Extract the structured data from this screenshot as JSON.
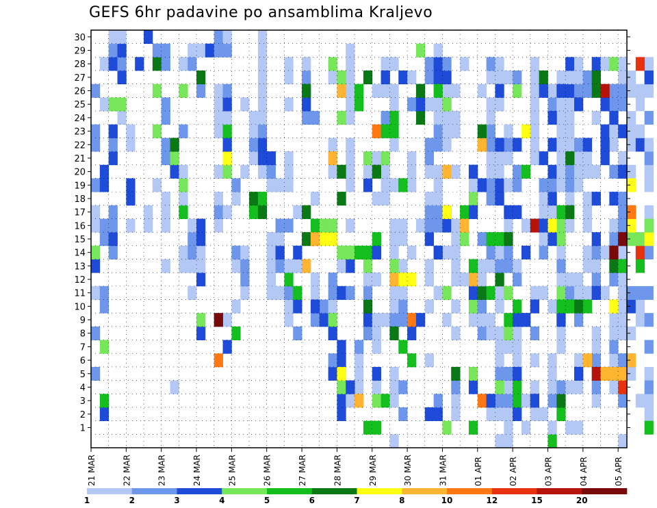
{
  "title": "GEFS 6hr padavine po ansamblima Kraljevo",
  "chart_data": {
    "type": "heatmap",
    "title": "GEFS 6hr padavine po ansamblima Kraljevo",
    "xlabel": "",
    "ylabel": "",
    "x_tick_labels": [
      "21 MAR",
      "22 MAR",
      "23 MAR",
      "24 MAR",
      "25 MAR",
      "26 MAR",
      "27 MAR",
      "28 MAR",
      "29 MAR",
      "30 MAR",
      "31 MAR",
      "01 APR",
      "02 APR",
      "03 APR",
      "04 APR",
      "05 APR"
    ],
    "y_tick_labels": [
      "1",
      "2",
      "3",
      "4",
      "5",
      "6",
      "7",
      "8",
      "9",
      "10",
      "11",
      "12",
      "13",
      "14",
      "15",
      "16",
      "17",
      "18",
      "19",
      "20",
      "21",
      "22",
      "23",
      "24",
      "25",
      "26",
      "27",
      "28",
      "29",
      "30"
    ],
    "steps_per_day": 4,
    "members": 31,
    "grid": true,
    "colorbar": {
      "levels": [
        "1",
        "2",
        "3",
        "4",
        "5",
        "6",
        "7",
        "8",
        "10",
        "12",
        "15",
        "20"
      ],
      "colors": [
        "#b4c8f5",
        "#6e96eb",
        "#1e4bd7",
        "#78e65a",
        "#14be1e",
        "#0a7814",
        "#ffff14",
        "#ffb432",
        "#ff7814",
        "#e6320f",
        "#b4140a",
        "#780a0a"
      ]
    },
    "cells": [
      [
        0,
        "5,1",
        "8,1",
        "11,0",
        "13,2",
        "14,3",
        "16,0",
        "17,0",
        "19,1",
        "22,1",
        "23,1",
        "26,1"
      ],
      [
        1,
        "2,2",
        "3,4",
        "10,1",
        "11,1",
        "15,1",
        "16,1",
        "19,2",
        "20,2",
        "25,0",
        "28,0"
      ],
      [
        2,
        "14,1",
        "15,2",
        "16,1",
        "17,1",
        "21,2",
        "22,1",
        "23,2",
        "25,3",
        "28,2",
        "29,1",
        "30,0"
      ],
      [
        3,
        "24,0",
        "25,3",
        "27,2",
        "28,1",
        "29,2",
        "30,0"
      ],
      [
        4,
        "16,0",
        "18,2",
        "19,2",
        "22,0",
        "23,0"
      ],
      [
        5,
        "28,2"
      ],
      [
        6,
        "16,0",
        "17,0",
        "30,2"
      ],
      [
        7,
        "19,0",
        "23,3",
        "26,3",
        "28,5",
        "29,1"
      ],
      [
        8,
        "13,0",
        "16,0",
        "17,0",
        "18,0",
        "21,1",
        "22,1",
        "24,1",
        "25,1",
        "28,1",
        "29,1"
      ],
      [
        9,
        "4,0",
        "20,2",
        "21,3",
        "22,5"
      ],
      [
        10,
        "13,0",
        "14,0",
        "17,4",
        "18,0",
        "19,3",
        "20,0",
        "23,1",
        "26,3",
        "28,0"
      ],
      [
        11,
        "11,0",
        "13,0",
        "14,1",
        "15,1",
        "16,0",
        "28,1",
        "29,0"
      ],
      [
        12,
        "8,2",
        "9,3",
        "12,2",
        "13,0",
        "14,0",
        "15,2",
        "16,2",
        "26,1",
        "27,5",
        "29,0"
      ],
      [
        13,
        "29,2"
      ],
      [
        14,
        "9,0",
        "16,0",
        "17,1",
        "18,0",
        "20,0",
        "23,0",
        "24,0",
        "25,0",
        "26,0",
        "29,1",
        "30,1"
      ],
      [
        15,
        "9,0",
        "17,0",
        "20,3",
        "21,6",
        "22,2",
        "23,4",
        "24,0",
        "25,2",
        "26,1",
        "29,1",
        "30,0"
      ],
      [
        16,
        "8,4",
        "10,0",
        "13,0",
        "14,1",
        "18,0",
        "19,1"
      ],
      [
        17,
        "11,0",
        "12,1",
        "13,1",
        "14,0",
        "20,0",
        "25,0"
      ],
      [
        18,
        "17,4",
        "18,5",
        "21,0",
        "22,1",
        "23,0",
        "24,0"
      ],
      [
        19,
        "17,5",
        "18,4",
        "20,0",
        "21,2",
        "22,2",
        "23,1",
        "24,0",
        "25,0",
        "26,0",
        "27,0",
        "28,0",
        "29,0",
        "30,0"
      ],
      [
        20,
        "11,0",
        "12,0",
        "13,0",
        "14,0",
        "15,0",
        "19,0",
        "20,1",
        "21,2"
      ],
      [
        21,
        "11,0",
        "13,1",
        "14,2",
        "15,0",
        "16,1",
        "19,0"
      ],
      [
        22,
        "9,0",
        "10,0",
        "11,1",
        "12,4",
        "13,0",
        "16,1",
        "19,0",
        "20,0",
        "21,0",
        "25,0",
        "27,0",
        "28,0"
      ],
      [
        23,
        "8,1",
        "10,2",
        "11,4",
        "13,0",
        "14,2",
        "17,0"
      ],
      [
        24,
        "17,5",
        "24,1",
        "25,2",
        "26,1",
        "27,1",
        "28,0"
      ],
      [
        25,
        "9,1",
        "11,0",
        "12,0",
        "15,8",
        "16,4",
        "18,0",
        "24,1"
      ],
      [
        26,
        "9,2",
        "10,1",
        "15,6",
        "16,3"
      ],
      [
        27,
        "5,2",
        "6,1",
        "10,0",
        "11,1",
        "12,1",
        "15,6",
        "16,1",
        "20,0",
        "21,0",
        "22,0",
        "27,0"
      ],
      [
        28,
        "2,2",
        "3,2",
        "4,2",
        "5,3",
        "6,2",
        "7,2",
        "11,2",
        "13,0",
        "14,3"
      ],
      [
        29,
        "3,0",
        "4,0",
        "11,1",
        "13,2",
        "14,3",
        "16,0",
        "19,0",
        "20,0",
        "21,0",
        "22,0",
        "24,0",
        "25,0",
        "26,0",
        "27,0",
        "28,0",
        "29,0"
      ],
      [
        30,
        "4,0",
        "5,0",
        "6,0",
        "7,1"
      ],
      [
        31,
        "8,1",
        "9,2",
        "10,5",
        "11,1",
        "12,0",
        "13,3",
        "14,4",
        "19,2",
        "20,0",
        "21,3",
        "27,0"
      ],
      [
        32,
        "3,3",
        "4,0",
        "5,2",
        "7,0",
        "8,0",
        "9,0",
        "12,0",
        "14,2",
        "18,0",
        "20,0",
        "21,0",
        "26,0"
      ],
      [
        33,
        "3,4",
        "9,0",
        "18,0",
        "19,0",
        "20,0",
        "24,1",
        "26,0",
        "27,0",
        "28,0"
      ],
      [
        34,
        "0,0",
        "3,0",
        "4,0",
        "5,0",
        "9,1",
        "10,0",
        "11,0",
        "12,0",
        "13,0",
        "14,0",
        "15,0",
        "16,0",
        "19,0",
        "22,0",
        "24,0",
        "25,0",
        "26,0",
        "28,0"
      ],
      [
        35,
        "2,1",
        "4,1",
        "9,1",
        "10,1",
        "11,0",
        "13,0",
        "15,0",
        "16,0",
        "19,2",
        "27,2"
      ],
      [
        36,
        "14,0",
        "19,0",
        "20,0",
        "21,0",
        "25,1",
        "27,0"
      ],
      [
        37,
        "9,0",
        "16,0",
        "26,1"
      ],
      [
        38,
        "2,2",
        "6,0",
        "10,0",
        "12,0",
        "13,0",
        "15,2",
        "16,1",
        "17,1",
        "18,0",
        "20,0",
        "21,1",
        "22,1",
        "25,0",
        "27,1",
        "28,1"
      ],
      [
        39,
        "2,2",
        "3,1",
        "11,0",
        "14,1",
        "16,1",
        "17,1",
        "18,0",
        "19,0",
        "20,0",
        "22,1",
        "23,1",
        "24,0",
        "25,0",
        "27,2",
        "28,2",
        "29,0"
      ],
      [
        40,
        "1,3",
        "9,0",
        "14,0",
        "16,2",
        "17,2",
        "22,0",
        "23,0",
        "24,0",
        "25,0",
        "26,0",
        "27,2",
        "28,1"
      ],
      [
        41,
        "2,0",
        "3,0",
        "4,1",
        "5,1",
        "8,0",
        "10,0",
        "12,0",
        "13,0",
        "14,0",
        "15,0",
        "16,0",
        "20,0",
        "23,0",
        "24,0",
        "26,0"
      ],
      [
        42,
        "12,0",
        "15,3",
        "17,4",
        "28,0"
      ],
      [
        43,
        "4,2",
        "5,3",
        "9,0",
        "10,3",
        "11,2",
        "18,3",
        "19,0",
        "20,2"
      ],
      [
        44,
        "8,1",
        "9,0",
        "10,1",
        "11,5",
        "12,0",
        "13,0",
        "15,1",
        "22,0",
        "26,0"
      ],
      [
        45,
        "2,0",
        "8,0",
        "9,0",
        "11,4",
        "13,0",
        "14,1",
        "15,4",
        "18,1",
        "19,1",
        "20,0",
        "21,0",
        "22,1",
        "23,1",
        "24,0",
        "25,0",
        "27,0",
        "28,1"
      ],
      [
        46,
        "0,0",
        "2,0",
        "3,1",
        "5,1",
        "6,0",
        "7,0",
        "8,0",
        "10,0",
        "11,0",
        "12,5",
        "13,1",
        "14,0",
        "18,2",
        "19,2",
        "20,0",
        "21,0",
        "22,0",
        "25,0",
        "27,0",
        "28,0"
      ],
      [
        47,
        "0,0",
        "1,0",
        "2,0",
        "3,1",
        "4,0",
        "5,1",
        "7,0",
        "8,3",
        "9,4",
        "13,1",
        "14,1",
        "15,0",
        "16,0",
        "17,2",
        "19,0",
        "21,0",
        "22,1",
        "23,0",
        "27,0"
      ],
      [
        48,
        "2,2",
        "3,4",
        "4,4",
        "6,0",
        "7,0",
        "8,0",
        "12,1",
        "13,0",
        "17,2",
        "19,1",
        "20,1",
        "22,2",
        "26,3",
        "27,1"
      ],
      [
        49,
        "1,0",
        "3,0",
        "9,2",
        "14,2",
        "16,0"
      ],
      [
        50,
        "2,0",
        "4,0",
        "6,0",
        "8,1",
        "10,0",
        "11,0",
        "21,0",
        "22,0",
        "23,0",
        "24,0",
        "25,0",
        "26,0",
        "27,0",
        "28,0"
      ],
      [
        51,
        "2,0",
        "11,0",
        "14,1",
        "15,0",
        "17,0",
        "18,0",
        "19,1",
        "21,2"
      ],
      [
        52,
        "0,4",
        "1,0",
        "3,1",
        "4,0",
        "5,0",
        "6,0",
        "10,0",
        "17,0",
        "18,2",
        "19,1",
        "20,2",
        "22,2",
        "25,1",
        "26,0"
      ],
      [
        53,
        "2,4",
        "3,5",
        "4,1",
        "7,0",
        "8,0",
        "9,0",
        "11,3",
        "12,0",
        "13,1",
        "14,0",
        "15,3",
        "16,3",
        "17,4",
        "19,0",
        "20,0",
        "21,0",
        "22,0",
        "23,0",
        "24,0",
        "25,0",
        "27,0"
      ],
      [
        54,
        "1,0",
        "4,0",
        "11,1",
        "12,0",
        "16,0",
        "18,0",
        "19,1",
        "20,1",
        "21,0",
        "22,0",
        "23,0",
        "24,0",
        "25,0",
        "26,2",
        "27,0",
        "28,2"
      ],
      [
        55,
        "1,0",
        "4,0",
        "5,2",
        "6,0",
        "9,1",
        "10,0",
        "11,0",
        "12,0",
        "19,0",
        "20,0",
        "21,0",
        "22,1",
        "26,1",
        "27,0",
        "28,0"
      ],
      [
        56,
        "11,0",
        "13,0",
        "14,0",
        "16,0",
        "17,0",
        "18,0",
        "20,0",
        "21,0",
        "22,2",
        "26,1",
        "27,1"
      ],
      [
        57,
        "3,0",
        "4,1",
        "6,1",
        "7,0",
        "8,0",
        "11,1",
        "12,1",
        "13,0",
        "14,1",
        "15,2",
        "18,2",
        "20,0",
        "24,0",
        "26,0",
        "27,1",
        "28,2"
      ],
      [
        58,
        "5,1",
        "11,0",
        "14,0",
        "21,2",
        "22,0",
        "23,2",
        "25,1",
        "26,0",
        "28,0"
      ],
      [
        59,
        "4,0",
        "6,0",
        "7,1",
        "8,0",
        "9,0",
        "10,0",
        "12,1",
        "13,0",
        "14,3",
        "15,1",
        "16,0",
        "18,2",
        "20,1",
        "22,0",
        "23,0",
        "24,0",
        "25,1",
        "26,1",
        "28,3"
      ],
      [
        60,
        "0,0",
        "5,0",
        "6,1",
        "8,0",
        "9,0",
        "10,0",
        "11,0",
        "12,0",
        "14,0",
        "15,2",
        "16,1",
        "17,1",
        "18,1",
        "21,0",
        "23,2",
        "25,1",
        "26,1",
        "27,0",
        "28,0"
      ],
      [
        61,
        "5,0",
        "6,1",
        "8,0",
        "10,2",
        "11,1",
        "17,2",
        "19,0",
        "20,0",
        "22,0",
        "23,0",
        "24,0",
        "26,0",
        "27,0"
      ],
      [
        62,
        "3,0",
        "9,0",
        "10,0",
        "11,1",
        "14,0",
        "15,0",
        "22,2",
        "23,0",
        "25,0",
        "26,0"
      ],
      [
        63,
        "2,0",
        "3,0",
        "5,0",
        "7,1",
        "9,1",
        "11,1",
        "14,1",
        "16,0",
        "17,0",
        "19,0",
        "20,0",
        "21,1",
        "22,0",
        "24,1",
        "26,0",
        "27,1",
        "28,0"
      ]
    ],
    "cell_hex": {
      "a": "#b4c8f5",
      "b": "#6e96eb",
      "c": "#1e4bd7",
      "d": "#78e65a",
      "e": "#14be1e",
      "f": "#0a7814",
      "g": "#ffff14",
      "h": "#ffb432",
      "i": "#ff7814",
      "j": "#e6320f",
      "k": "#b4140a",
      "l": "#780a0a"
    },
    "hot_cells": [
      [
        1,
        "7,d"
      ],
      [
        14,
        "6,i",
        "9,l"
      ],
      [
        15,
        "7,c"
      ],
      [
        24,
        "13,h",
        "15,f",
        "26,f"
      ],
      [
        25,
        "10,c",
        "15,h"
      ],
      [
        27,
        "8,c",
        "9,d",
        "16,d",
        "21,h",
        "28,d"
      ],
      [
        28,
        "4,d",
        "5,g",
        "18,f",
        "20,f",
        "24,d",
        "26,h",
        "27,d"
      ],
      [
        29,
        "4,c"
      ],
      [
        30,
        "3,h",
        "14,e",
        "25,e",
        "26,e"
      ],
      [
        31,
        "1,e",
        "27,f"
      ],
      [
        32,
        "1,e",
        "15,e",
        "20,f",
        "23,i"
      ],
      [
        33,
        "21,d",
        "23,e",
        "27,c"
      ],
      [
        34,
        "8,f",
        "12,h",
        "13,d",
        "23,e",
        "24,e"
      ],
      [
        35,
        "7,e",
        "12,g",
        "19,e"
      ],
      [
        36,
        "6,e",
        "8,c",
        "9,i",
        "12,g"
      ],
      [
        37,
        "9,c",
        "24,f",
        "25,c",
        "26,f",
        "29,d"
      ],
      [
        39,
        "14,c",
        "26,e"
      ],
      [
        40,
        "11,d",
        "17,g",
        "20,h",
        "25,d"
      ],
      [
        41,
        "5,f"
      ],
      [
        42,
        "16,h"
      ],
      [
        43,
        "1,e",
        "12,h",
        "13,e",
        "17,c",
        "20,c"
      ],
      [
        44,
        "3,i",
        "19,c",
        "22,h",
        "23,f"
      ],
      [
        45,
        "3,c"
      ],
      [
        46,
        "4,d",
        "15,e",
        "22,c",
        "26,c"
      ],
      [
        47,
        "11,d",
        "15,f"
      ],
      [
        48,
        "5,c",
        "9,c",
        "10,e"
      ],
      [
        49,
        "9,c",
        "20,e",
        "23,g"
      ],
      [
        50,
        "3,c",
        "10,c",
        "16,k"
      ],
      [
        51,
        "16,c",
        "26,c",
        "27,f"
      ],
      [
        52,
        "15,c",
        "16,g",
        "24,c"
      ],
      [
        53,
        "9,c",
        "10,e",
        "26,c"
      ],
      [
        54,
        "10,e",
        "17,f",
        "21,f"
      ],
      [
        55,
        "5,c",
        "10,f",
        "25,c"
      ],
      [
        56,
        "6,h",
        "10,e"
      ],
      [
        57,
        "5,k",
        "11,c",
        "26,f",
        "27,f"
      ],
      [
        58,
        "5,h",
        "22,c",
        "25,c",
        "26,k"
      ],
      [
        59,
        "5,h",
        "10,g",
        "13,f",
        "14,l",
        "24,c"
      ],
      [
        60,
        "3,b",
        "4,j",
        "5,h",
        "13,e",
        "15,l",
        "20,c"
      ],
      [
        61,
        "6,h",
        "15,d",
        "16,g",
        "17,i",
        "19,g"
      ],
      [
        62,
        "13,e",
        "14,j",
        "15,d",
        "28,j"
      ],
      [
        63,
        "1,e",
        "4,b",
        "15,g",
        "16,d",
        "27,c"
      ]
    ]
  }
}
